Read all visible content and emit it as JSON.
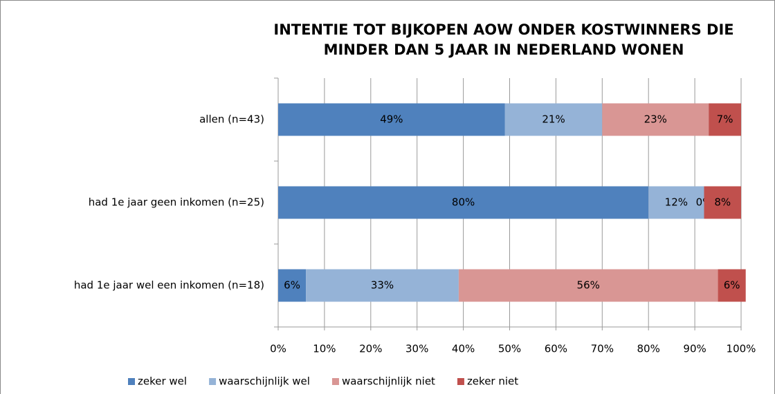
{
  "chart_data": {
    "type": "stacked_barh",
    "title": "INTENTIE TOT BIJKOPEN AOW ONDER KOSTWINNERS DIE MINDER DAN 5 JAAR IN NEDERLAND WONEN",
    "title_lines": [
      "INTENTIE TOT BIJKOPEN AOW ONDER KOSTWINNERS DIE",
      "MINDER DAN 5 JAAR IN NEDERLAND WONEN"
    ],
    "categories": [
      "allen (n=43)",
      "had 1e jaar geen inkomen (n=25)",
      "had 1e jaar wel een inkomen (n=18)"
    ],
    "series": [
      {
        "name": "zeker wel",
        "color": "#4f81bd",
        "values": [
          49,
          80,
          6
        ],
        "value_labels": [
          "49%",
          "80%",
          "6%"
        ]
      },
      {
        "name": "waarschijnlijk wel",
        "color": "#95b3d7",
        "values": [
          21,
          12,
          33
        ],
        "value_labels": [
          "21%",
          "12%",
          "33%"
        ]
      },
      {
        "name": "waarschijnlijk niet",
        "color": "#d99694",
        "values": [
          23,
          0,
          56
        ],
        "value_labels": [
          "23%",
          "0%",
          "56%"
        ]
      },
      {
        "name": "zeker niet",
        "color": "#c0504d",
        "values": [
          7,
          8,
          6
        ],
        "value_labels": [
          "7%",
          "8%",
          "6%"
        ]
      }
    ],
    "xlim": [
      0,
      100
    ],
    "xticks": [
      {
        "value": 0,
        "label": "0%"
      },
      {
        "value": 10,
        "label": "10%"
      },
      {
        "value": 20,
        "label": "20%"
      },
      {
        "value": 30,
        "label": "30%"
      },
      {
        "value": 40,
        "label": "40%"
      },
      {
        "value": 50,
        "label": "50%"
      },
      {
        "value": 60,
        "label": "60%"
      },
      {
        "value": 70,
        "label": "70%"
      },
      {
        "value": 80,
        "label": "80%"
      },
      {
        "value": 90,
        "label": "90%"
      },
      {
        "value": 100,
        "label": "100%"
      }
    ],
    "grid": true,
    "legend": "bottom"
  }
}
